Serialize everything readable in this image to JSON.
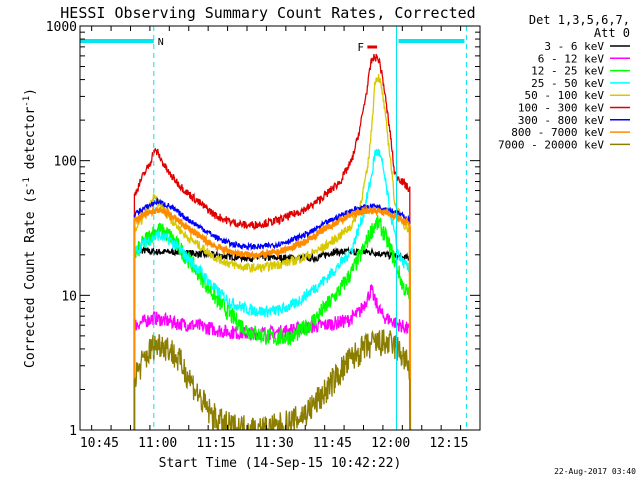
{
  "chart_data": {
    "type": "line",
    "title": "HESSI Observing Summary Count Rates, Corrected",
    "ylabel_pre": "Corrected Count Rate (s",
    "ylabel_sup": "-1",
    "ylabel_mid": " detector",
    "ylabel_post": ")",
    "xlabel": "Start Time (14-Sep-15 10:42:22)",
    "footer": "22-Aug-2017 03:40",
    "y_scale": "log",
    "ylim": [
      1,
      1000
    ],
    "y_ticks": [
      {
        "value": 1,
        "label": "1"
      },
      {
        "value": 10,
        "label": "10"
      },
      {
        "value": 100,
        "label": "100"
      },
      {
        "value": 1000,
        "label": "1000"
      }
    ],
    "xlim_minutes": [
      -3,
      37
    ],
    "x_ticks": [
      {
        "value": 2,
        "label": "10:45"
      },
      {
        "value": 17,
        "label": "11:00"
      },
      {
        "value": 32,
        "label": "11:15"
      },
      {
        "value": 47,
        "label": "11:30"
      },
      {
        "value": 62,
        "label": "11:45"
      },
      {
        "value": 77,
        "label": "12:00"
      },
      {
        "value": 92,
        "label": "12:15"
      }
    ],
    "x_range_minutes": [
      -3,
      100
    ],
    "legend_header": [
      "Det 1,3,5,6,7,",
      "Att 0"
    ],
    "flags": [
      {
        "label": "N",
        "start": -3,
        "end": 16,
        "color": "#00e5ee"
      },
      {
        "label": "",
        "start": 79,
        "end": 96,
        "color": "#00e5ee"
      }
    ],
    "flare_marker": {
      "label": "F",
      "start": 71,
      "end": 73.5,
      "value": 800,
      "color": "#e00000"
    },
    "vlines": [
      {
        "x": 16,
        "style": "dashed",
        "color": "#00e5ee"
      },
      {
        "x": 78.5,
        "style": "solid",
        "color": "#00e5ee"
      },
      {
        "x": 96.5,
        "style": "dashed",
        "color": "#00e5ee"
      }
    ],
    "data_start": 11,
    "data_end": 82,
    "series": [
      {
        "name": "3 - 6 keV",
        "color": "#000000",
        "points": [
          [
            11,
            1.0
          ],
          [
            11,
            22
          ],
          [
            16,
            21
          ],
          [
            22,
            21
          ],
          [
            30,
            20
          ],
          [
            40,
            19
          ],
          [
            50,
            19
          ],
          [
            58,
            19
          ],
          [
            62,
            21
          ],
          [
            68,
            21
          ],
          [
            72,
            21
          ],
          [
            76,
            20
          ],
          [
            80,
            19
          ],
          [
            82,
            19
          ],
          [
            82,
            1.0
          ]
        ]
      },
      {
        "name": "6 - 12 keV",
        "color": "#ff00ff",
        "points": [
          [
            11,
            6.0
          ],
          [
            16,
            6.8
          ],
          [
            22,
            6.2
          ],
          [
            28,
            5.9
          ],
          [
            34,
            5.4
          ],
          [
            40,
            5.2
          ],
          [
            48,
            5.3
          ],
          [
            55,
            5.8
          ],
          [
            60,
            6.0
          ],
          [
            66,
            6.5
          ],
          [
            69,
            7.5
          ],
          [
            71,
            9.5
          ],
          [
            72,
            11
          ],
          [
            73,
            9
          ],
          [
            75,
            7
          ],
          [
            78,
            6.3
          ],
          [
            82,
            5.5
          ]
        ]
      },
      {
        "name": "12 - 25 keV",
        "color": "#00ff00",
        "points": [
          [
            11,
            20
          ],
          [
            14,
            26
          ],
          [
            17,
            31
          ],
          [
            20,
            28
          ],
          [
            24,
            20
          ],
          [
            28,
            14
          ],
          [
            32,
            9.5
          ],
          [
            36,
            7
          ],
          [
            40,
            5.5
          ],
          [
            44,
            5.0
          ],
          [
            48,
            4.8
          ],
          [
            52,
            5.0
          ],
          [
            56,
            6.0
          ],
          [
            60,
            8
          ],
          [
            64,
            11
          ],
          [
            67,
            15
          ],
          [
            70,
            22
          ],
          [
            72,
            30
          ],
          [
            73,
            34
          ],
          [
            74,
            34
          ],
          [
            75,
            30
          ],
          [
            77,
            22
          ],
          [
            79,
            15
          ],
          [
            80,
            12
          ],
          [
            82,
            9.5
          ]
        ]
      },
      {
        "name": "25 - 50 keV",
        "color": "#00ffff",
        "points": [
          [
            11,
            21
          ],
          [
            14,
            25
          ],
          [
            17,
            28
          ],
          [
            20,
            26
          ],
          [
            24,
            20
          ],
          [
            28,
            15
          ],
          [
            32,
            11
          ],
          [
            36,
            8.8
          ],
          [
            40,
            7.9
          ],
          [
            44,
            7.6
          ],
          [
            48,
            7.7
          ],
          [
            52,
            8.5
          ],
          [
            56,
            10.5
          ],
          [
            60,
            13
          ],
          [
            64,
            17
          ],
          [
            67,
            22
          ],
          [
            70,
            40
          ],
          [
            72,
            75
          ],
          [
            73,
            115
          ],
          [
            74,
            115
          ],
          [
            75,
            90
          ],
          [
            77,
            40
          ],
          [
            79,
            20
          ],
          [
            80,
            18
          ],
          [
            82,
            15
          ]
        ]
      },
      {
        "name": "50 - 100 keV",
        "color": "#ffff00",
        "alt_color": "#d8c800",
        "points": [
          [
            11,
            30
          ],
          [
            14,
            40
          ],
          [
            16,
            53
          ],
          [
            18,
            46
          ],
          [
            20,
            38
          ],
          [
            24,
            28
          ],
          [
            28,
            23
          ],
          [
            32,
            19
          ],
          [
            36,
            17
          ],
          [
            40,
            16
          ],
          [
            44,
            16
          ],
          [
            48,
            17
          ],
          [
            52,
            18
          ],
          [
            56,
            20
          ],
          [
            60,
            23
          ],
          [
            64,
            28
          ],
          [
            67,
            33
          ],
          [
            69,
            45
          ],
          [
            71,
            85
          ],
          [
            72,
            160
          ],
          [
            73,
            400
          ],
          [
            74,
            420
          ],
          [
            75,
            300
          ],
          [
            77,
            100
          ],
          [
            78,
            50
          ],
          [
            80,
            35
          ],
          [
            82,
            30
          ]
        ]
      },
      {
        "name": "100 - 300 keV",
        "color": "#e00000",
        "points": [
          [
            11,
            55
          ],
          [
            13,
            75
          ],
          [
            15,
            95
          ],
          [
            16,
            118
          ],
          [
            17,
            115
          ],
          [
            18,
            100
          ],
          [
            20,
            80
          ],
          [
            24,
            60
          ],
          [
            28,
            48
          ],
          [
            32,
            39
          ],
          [
            36,
            35
          ],
          [
            40,
            33
          ],
          [
            44,
            34
          ],
          [
            48,
            36
          ],
          [
            52,
            40
          ],
          [
            56,
            45
          ],
          [
            60,
            55
          ],
          [
            64,
            70
          ],
          [
            67,
            100
          ],
          [
            69,
            170
          ],
          [
            71,
            350
          ],
          [
            72,
            550
          ],
          [
            73,
            590
          ],
          [
            74,
            560
          ],
          [
            75,
            400
          ],
          [
            77,
            150
          ],
          [
            78,
            80
          ],
          [
            80,
            70
          ],
          [
            82,
            60
          ]
        ]
      },
      {
        "name": "300 - 800 keV",
        "color": "#0000ff",
        "points": [
          [
            11,
            40
          ],
          [
            14,
            45
          ],
          [
            17,
            50
          ],
          [
            20,
            46
          ],
          [
            24,
            38
          ],
          [
            28,
            32
          ],
          [
            32,
            27
          ],
          [
            36,
            24
          ],
          [
            40,
            23
          ],
          [
            44,
            23
          ],
          [
            48,
            24
          ],
          [
            52,
            26
          ],
          [
            56,
            29
          ],
          [
            60,
            34
          ],
          [
            64,
            39
          ],
          [
            67,
            43
          ],
          [
            70,
            45
          ],
          [
            73,
            46
          ],
          [
            76,
            44
          ],
          [
            78,
            42
          ],
          [
            80,
            39
          ],
          [
            82,
            36
          ]
        ]
      },
      {
        "name": "800 - 7000 keV",
        "color": "#ff8c00",
        "points": [
          [
            11,
            36
          ],
          [
            14,
            40
          ],
          [
            17,
            43
          ],
          [
            20,
            40
          ],
          [
            24,
            33
          ],
          [
            28,
            27
          ],
          [
            32,
            23
          ],
          [
            36,
            21
          ],
          [
            40,
            20
          ],
          [
            44,
            20
          ],
          [
            48,
            21
          ],
          [
            52,
            23
          ],
          [
            56,
            26
          ],
          [
            60,
            31
          ],
          [
            64,
            36
          ],
          [
            67,
            40
          ],
          [
            70,
            42
          ],
          [
            73,
            43
          ],
          [
            76,
            41
          ],
          [
            78,
            39
          ],
          [
            80,
            36
          ],
          [
            82,
            33
          ]
        ]
      },
      {
        "name": "7000 - 20000 keV",
        "color": "#8b7d00",
        "points": [
          [
            11,
            2.4
          ],
          [
            12,
            2.8
          ],
          [
            14,
            3.5
          ],
          [
            16,
            4.2
          ],
          [
            18,
            4.4
          ],
          [
            20,
            4.0
          ],
          [
            22,
            3.4
          ],
          [
            24,
            2.8
          ],
          [
            26,
            2.2
          ],
          [
            28,
            1.7
          ],
          [
            30,
            1.4
          ],
          [
            32,
            1.2
          ],
          [
            34,
            1.1
          ],
          [
            36,
            1.05
          ],
          [
            40,
            1.02
          ],
          [
            44,
            1.0
          ],
          [
            48,
            1.05
          ],
          [
            52,
            1.15
          ],
          [
            56,
            1.4
          ],
          [
            60,
            1.9
          ],
          [
            64,
            2.7
          ],
          [
            67,
            3.4
          ],
          [
            70,
            4.0
          ],
          [
            73,
            4.4
          ],
          [
            76,
            4.4
          ],
          [
            78,
            4.2
          ],
          [
            80,
            3.6
          ],
          [
            82,
            2.8
          ]
        ]
      }
    ]
  }
}
